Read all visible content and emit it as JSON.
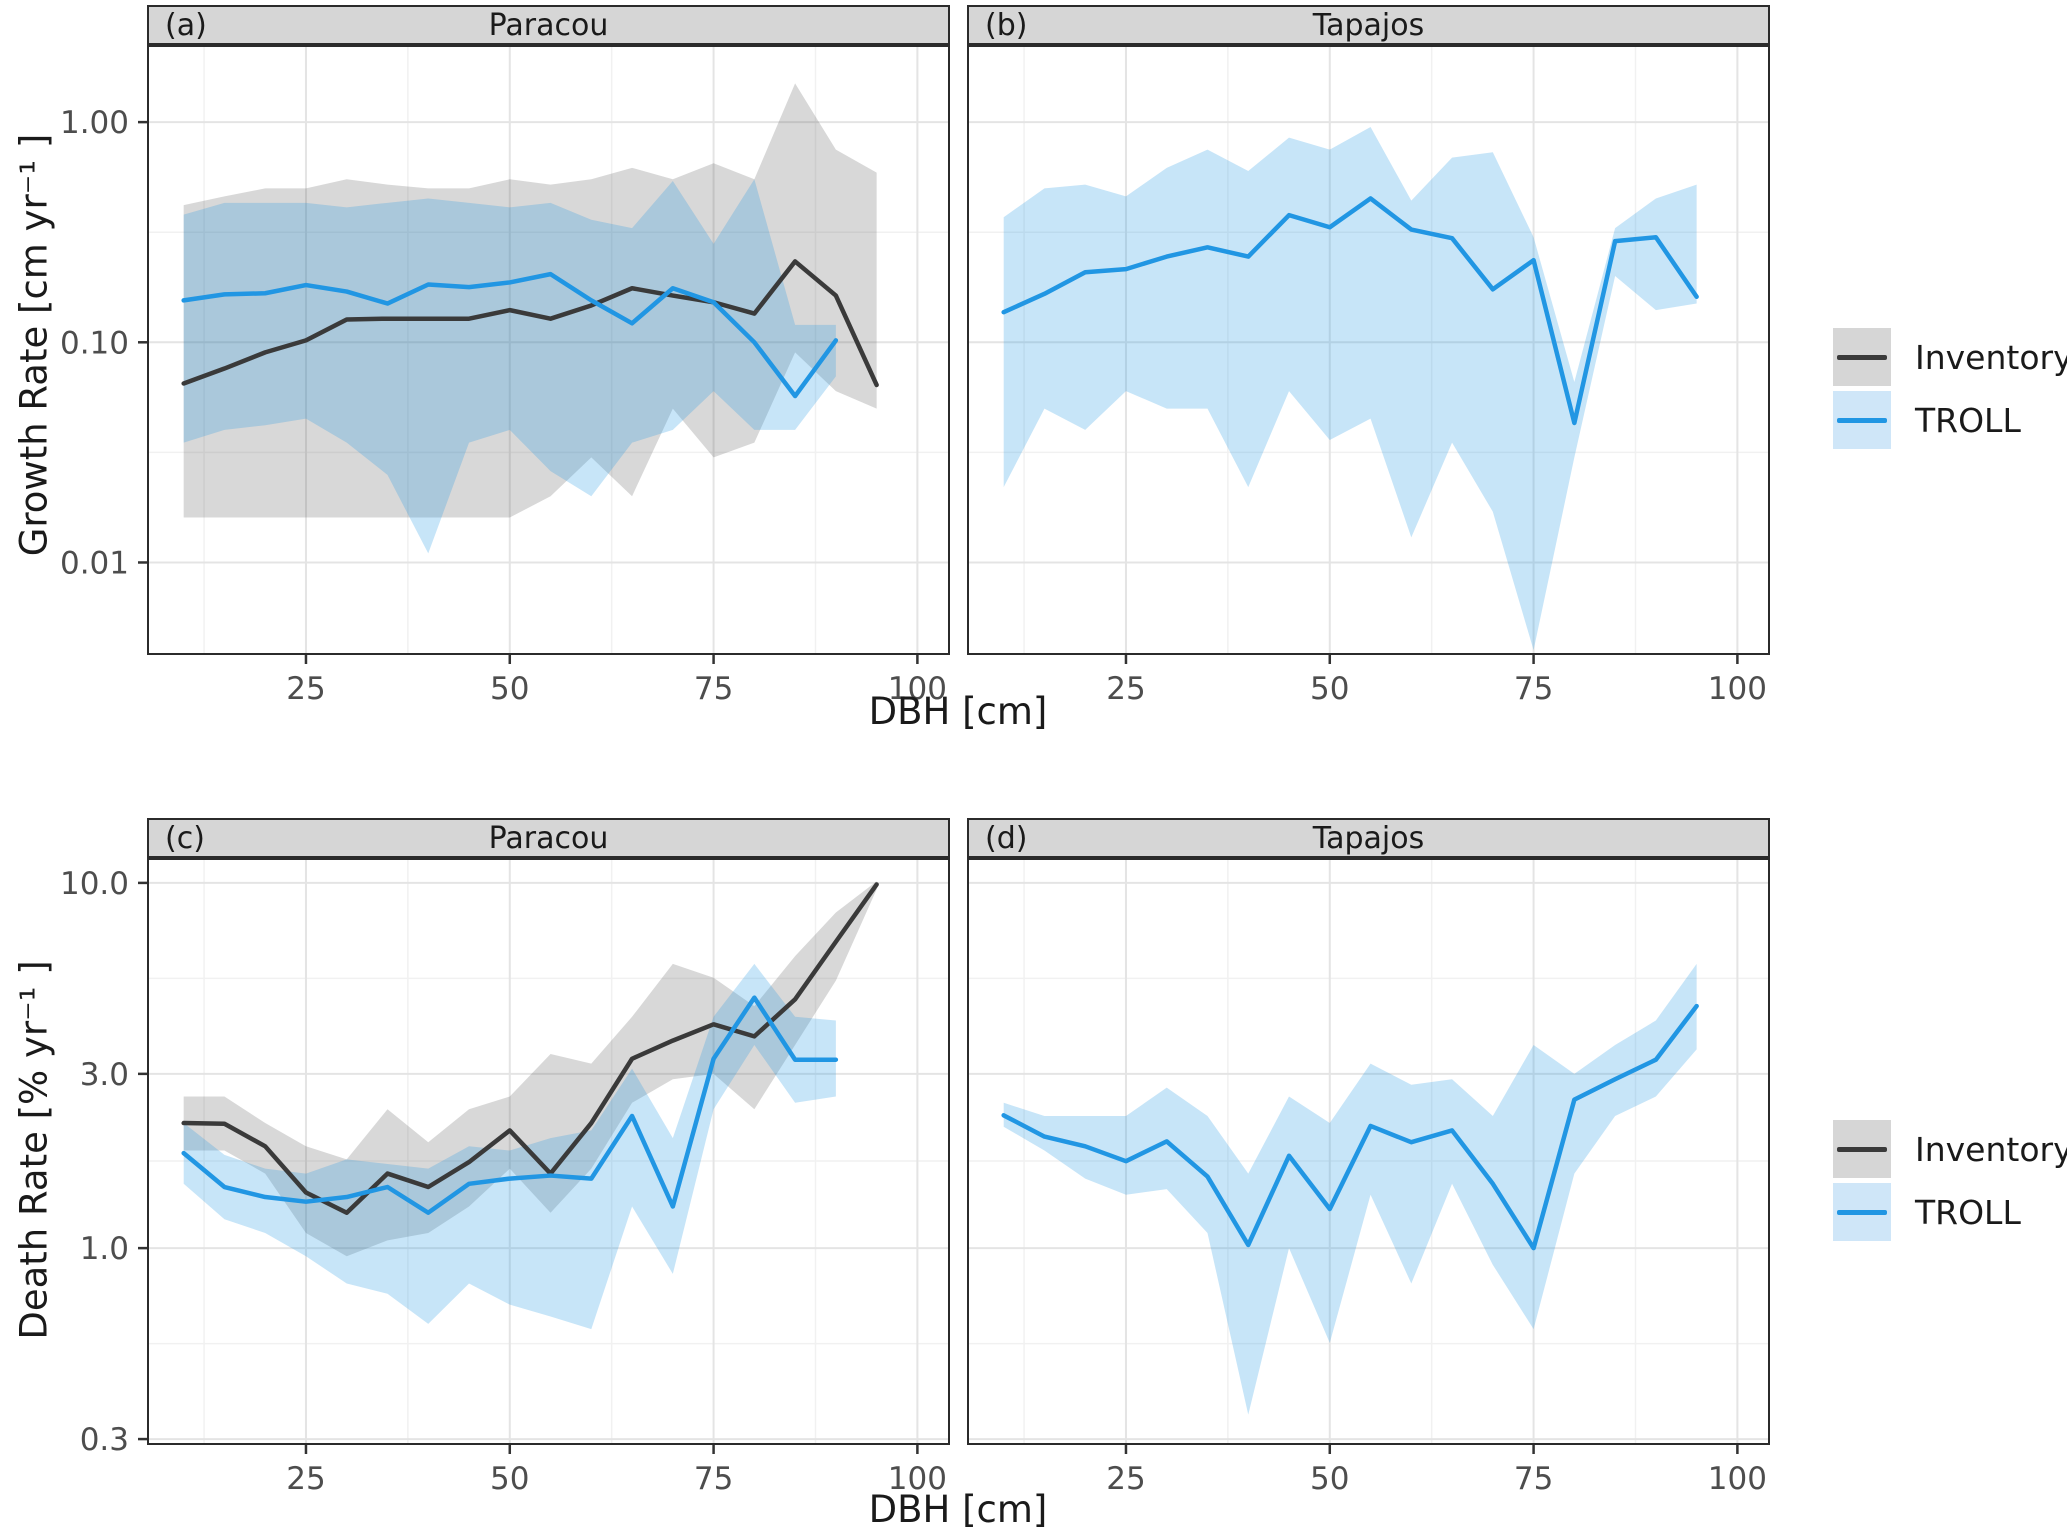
{
  "figure_type": "faceted line chart with confidence ribbons, log y-scales",
  "axes": {
    "x": {
      "label": "DBH [cm]",
      "domain": [
        5.5,
        104
      ],
      "major": [
        25,
        50,
        75,
        100
      ],
      "minor": [
        12.5,
        37.5,
        62.5,
        87.5
      ],
      "tick_labels": [
        "25",
        "50",
        "75",
        "100"
      ]
    },
    "y_growth": {
      "label": "Growth Rate [cm yr⁻¹ ]",
      "type": "log",
      "domain": [
        2.24,
        0.0038
      ],
      "major": [
        1.0,
        0.1,
        0.01
      ],
      "minor": [
        0.3162,
        0.03162
      ],
      "tick_labels": [
        "1.00",
        "0.10",
        "0.01"
      ]
    },
    "y_death": {
      "label": "Death Rate [% yr⁻¹ ]",
      "type": "log",
      "domain": [
        11.7,
        0.289
      ],
      "major": [
        10.0,
        3.0,
        1.0,
        0.3
      ],
      "minor": [
        5.477,
        1.732,
        0.5477
      ],
      "tick_labels": [
        "10.0",
        "3.0",
        "1.0",
        "0.3"
      ]
    }
  },
  "legend": {
    "items": [
      {
        "label": "Inventory",
        "line_color": "#3a3a3a",
        "fill_color": "#d6d6d6"
      },
      {
        "label": "TROLL",
        "line_color": "#2196e3",
        "fill_color": "#cfe6f8"
      }
    ]
  },
  "colors": {
    "inventory_line": "#3a3a3a",
    "troll_line": "#2196e3",
    "inventory_ribbon": "rgba(77,77,77,0.22)",
    "troll_ribbon": "rgba(33,150,227,0.25)",
    "grid_major": "#e4e4e4",
    "grid_minor": "#f1f1f1",
    "panel_border": "#2b2b2b",
    "tick_text": "#4d4d4d",
    "strip_bg": "#d6d6d6"
  },
  "chart_data": [
    {
      "id": "a",
      "row": 0,
      "col": 0,
      "type": "line",
      "strip_tag": "(a)",
      "strip_title": "Paracou",
      "yscale": "y_growth",
      "series": [
        {
          "name": "Inventory",
          "color": "#3a3a3a",
          "fill": "rgba(77,77,77,0.22)",
          "x": [
            10,
            15,
            20,
            25,
            30,
            35,
            40,
            45,
            50,
            55,
            60,
            65,
            70,
            75,
            80,
            85,
            90,
            95
          ],
          "line": [
            0.065,
            0.076,
            0.09,
            0.102,
            0.127,
            0.128,
            0.128,
            0.128,
            0.14,
            0.128,
            0.147,
            0.176,
            0.163,
            0.152,
            0.135,
            0.233,
            0.163,
            0.064
          ],
          "upper": [
            0.42,
            0.46,
            0.5,
            0.5,
            0.55,
            0.52,
            0.5,
            0.5,
            0.55,
            0.52,
            0.55,
            0.62,
            0.55,
            0.65,
            0.55,
            1.5,
            0.75,
            0.59
          ],
          "lower": [
            0.016,
            0.016,
            0.016,
            0.016,
            0.016,
            0.016,
            0.016,
            0.016,
            0.016,
            0.02,
            0.03,
            0.02,
            0.05,
            0.03,
            0.035,
            0.09,
            0.06,
            0.05
          ]
        },
        {
          "name": "TROLL",
          "color": "#2196e3",
          "fill": "rgba(33,150,227,0.25)",
          "x": [
            10,
            15,
            20,
            25,
            30,
            35,
            40,
            45,
            50,
            55,
            60,
            65,
            70,
            75,
            80,
            85,
            90
          ],
          "line": [
            0.155,
            0.165,
            0.167,
            0.182,
            0.17,
            0.15,
            0.183,
            0.178,
            0.187,
            0.204,
            0.155,
            0.122,
            0.176,
            0.152,
            0.1,
            0.057,
            0.102
          ],
          "upper": [
            0.38,
            0.43,
            0.43,
            0.43,
            0.41,
            0.43,
            0.45,
            0.43,
            0.41,
            0.43,
            0.36,
            0.33,
            0.54,
            0.28,
            0.55,
            0.12,
            0.12
          ],
          "lower": [
            0.035,
            0.04,
            0.042,
            0.045,
            0.035,
            0.025,
            0.011,
            0.035,
            0.04,
            0.026,
            0.02,
            0.035,
            0.04,
            0.06,
            0.04,
            0.04,
            0.07
          ]
        }
      ]
    },
    {
      "id": "b",
      "row": 0,
      "col": 1,
      "type": "line",
      "strip_tag": "(b)",
      "strip_title": "Tapajos",
      "yscale": "y_growth",
      "series": [
        {
          "name": "TROLL",
          "color": "#2196e3",
          "fill": "rgba(33,150,227,0.25)",
          "x": [
            10,
            15,
            20,
            25,
            30,
            35,
            40,
            45,
            50,
            55,
            60,
            65,
            70,
            75,
            80,
            85,
            90,
            95
          ],
          "line": [
            0.137,
            0.166,
            0.208,
            0.215,
            0.245,
            0.27,
            0.245,
            0.378,
            0.333,
            0.45,
            0.325,
            0.297,
            0.174,
            0.236,
            0.043,
            0.288,
            0.3,
            0.161
          ],
          "upper": [
            0.37,
            0.5,
            0.52,
            0.46,
            0.62,
            0.75,
            0.6,
            0.85,
            0.75,
            0.95,
            0.44,
            0.69,
            0.73,
            0.3,
            0.066,
            0.33,
            0.45,
            0.52
          ],
          "lower": [
            0.022,
            0.05,
            0.04,
            0.06,
            0.05,
            0.05,
            0.022,
            0.06,
            0.036,
            0.045,
            0.013,
            0.035,
            0.017,
            0.004,
            0.03,
            0.2,
            0.14,
            0.15
          ]
        }
      ]
    },
    {
      "id": "c",
      "row": 1,
      "col": 0,
      "type": "line",
      "strip_tag": "(c)",
      "strip_title": "Paracou",
      "yscale": "y_death",
      "series": [
        {
          "name": "Inventory",
          "color": "#3a3a3a",
          "fill": "rgba(77,77,77,0.22)",
          "x": [
            10,
            15,
            20,
            25,
            30,
            35,
            40,
            45,
            50,
            55,
            60,
            65,
            70,
            75,
            80,
            85,
            90,
            95
          ],
          "line": [
            2.2,
            2.19,
            1.9,
            1.42,
            1.25,
            1.6,
            1.47,
            1.72,
            2.1,
            1.6,
            2.2,
            3.3,
            3.7,
            4.1,
            3.8,
            4.8,
            6.9,
            9.9
          ],
          "upper": [
            2.6,
            2.6,
            2.2,
            1.9,
            1.75,
            2.4,
            1.95,
            2.4,
            2.6,
            3.4,
            3.2,
            4.3,
            6.0,
            5.5,
            4.6,
            6.3,
            8.3,
            10.1
          ],
          "lower": [
            1.85,
            1.85,
            1.6,
            1.1,
            0.95,
            1.05,
            1.1,
            1.3,
            1.65,
            1.25,
            1.65,
            2.5,
            2.9,
            3.0,
            2.4,
            3.6,
            5.4,
            9.6
          ]
        },
        {
          "name": "TROLL",
          "color": "#2196e3",
          "fill": "rgba(33,150,227,0.25)",
          "x": [
            10,
            15,
            20,
            25,
            30,
            35,
            40,
            45,
            50,
            55,
            60,
            65,
            70,
            75,
            80,
            85,
            90
          ],
          "line": [
            1.82,
            1.47,
            1.38,
            1.34,
            1.38,
            1.47,
            1.25,
            1.5,
            1.55,
            1.58,
            1.55,
            2.3,
            1.3,
            3.3,
            4.85,
            3.28,
            3.28
          ],
          "upper": [
            2.2,
            1.8,
            1.65,
            1.6,
            1.75,
            1.7,
            1.65,
            1.9,
            1.85,
            2.0,
            2.1,
            3.1,
            2.0,
            4.3,
            6.0,
            4.3,
            4.2
          ],
          "lower": [
            1.5,
            1.2,
            1.1,
            0.95,
            0.8,
            0.75,
            0.62,
            0.8,
            0.7,
            0.65,
            0.6,
            1.3,
            0.85,
            2.4,
            3.6,
            2.5,
            2.6
          ]
        }
      ]
    },
    {
      "id": "d",
      "row": 1,
      "col": 1,
      "type": "line",
      "strip_tag": "(d)",
      "strip_title": "Tapajos",
      "yscale": "y_death",
      "series": [
        {
          "name": "TROLL",
          "color": "#2196e3",
          "fill": "rgba(33,150,227,0.25)",
          "x": [
            10,
            15,
            20,
            25,
            30,
            35,
            40,
            45,
            50,
            55,
            60,
            65,
            70,
            75,
            80,
            85,
            90,
            95
          ],
          "line": [
            2.31,
            2.02,
            1.9,
            1.73,
            1.96,
            1.57,
            1.02,
            1.79,
            1.28,
            2.16,
            1.95,
            2.1,
            1.5,
            1.0,
            2.55,
            2.9,
            3.28,
            4.6
          ],
          "upper": [
            2.5,
            2.3,
            2.3,
            2.3,
            2.75,
            2.3,
            1.6,
            2.6,
            2.2,
            3.2,
            2.8,
            2.9,
            2.3,
            3.6,
            3.0,
            3.6,
            4.2,
            6.0
          ],
          "lower": [
            2.15,
            1.85,
            1.55,
            1.4,
            1.45,
            1.1,
            0.35,
            1.0,
            0.55,
            1.4,
            0.8,
            1.5,
            0.9,
            0.6,
            1.6,
            2.3,
            2.6,
            3.5
          ]
        }
      ]
    }
  ]
}
